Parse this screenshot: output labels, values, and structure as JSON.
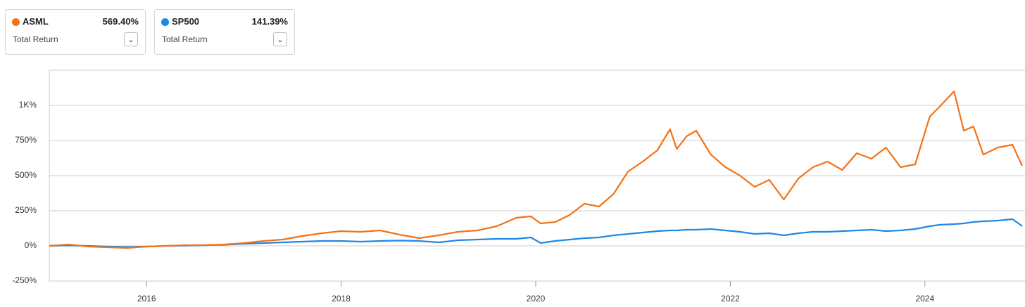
{
  "chart_data": {
    "type": "line",
    "xlim": [
      2015,
      2025
    ],
    "xticks": [
      2016,
      2018,
      2020,
      2022,
      2024
    ],
    "ylim": [
      -250,
      1250
    ],
    "yticks": [
      {
        "value": -250,
        "label": "-250%"
      },
      {
        "value": 0,
        "label": "0%"
      },
      {
        "value": 250,
        "label": "250%"
      },
      {
        "value": 500,
        "label": "500%"
      },
      {
        "value": 750,
        "label": "750%"
      },
      {
        "value": 1000,
        "label": "1K%"
      }
    ],
    "grid": true,
    "x": [
      2015.0,
      2015.2,
      2015.4,
      2015.6,
      2015.8,
      2016.0,
      2016.2,
      2016.4,
      2016.6,
      2016.8,
      2017.0,
      2017.2,
      2017.4,
      2017.6,
      2017.8,
      2018.0,
      2018.2,
      2018.4,
      2018.6,
      2018.8,
      2019.0,
      2019.2,
      2019.4,
      2019.6,
      2019.8,
      2019.95,
      2020.05,
      2020.2,
      2020.35,
      2020.5,
      2020.65,
      2020.8,
      2020.95,
      2021.1,
      2021.25,
      2021.38,
      2021.45,
      2021.55,
      2021.65,
      2021.8,
      2021.95,
      2022.1,
      2022.25,
      2022.4,
      2022.55,
      2022.7,
      2022.85,
      2023.0,
      2023.15,
      2023.3,
      2023.45,
      2023.6,
      2023.75,
      2023.9,
      2024.05,
      2024.15,
      2024.3,
      2024.4,
      2024.5,
      2024.6,
      2024.75,
      2024.9,
      2025.0
    ],
    "series": [
      {
        "name": "ASML",
        "color": "#f47216",
        "summary": "569.40%",
        "metric": "Total Return",
        "values": [
          0,
          10,
          -5,
          -10,
          -15,
          -5,
          0,
          5,
          5,
          10,
          20,
          35,
          45,
          70,
          90,
          105,
          100,
          110,
          80,
          55,
          75,
          100,
          110,
          140,
          200,
          210,
          160,
          170,
          220,
          300,
          280,
          370,
          530,
          600,
          680,
          830,
          690,
          780,
          820,
          650,
          560,
          500,
          420,
          470,
          330,
          480,
          560,
          600,
          540,
          660,
          620,
          700,
          560,
          580,
          920,
          990,
          1100,
          820,
          850,
          650,
          700,
          720,
          569.4
        ]
      },
      {
        "name": "SP500",
        "color": "#1e88e5",
        "summary": "141.39%",
        "metric": "Total Return",
        "values": [
          0,
          3,
          0,
          -5,
          -8,
          -5,
          0,
          2,
          5,
          8,
          15,
          20,
          25,
          30,
          35,
          35,
          30,
          35,
          38,
          35,
          25,
          40,
          45,
          50,
          50,
          60,
          20,
          35,
          45,
          55,
          60,
          75,
          85,
          95,
          105,
          110,
          110,
          115,
          115,
          120,
          110,
          100,
          85,
          90,
          75,
          90,
          100,
          100,
          105,
          110,
          115,
          105,
          110,
          120,
          140,
          150,
          155,
          160,
          170,
          175,
          180,
          190,
          141.39
        ]
      }
    ]
  }
}
